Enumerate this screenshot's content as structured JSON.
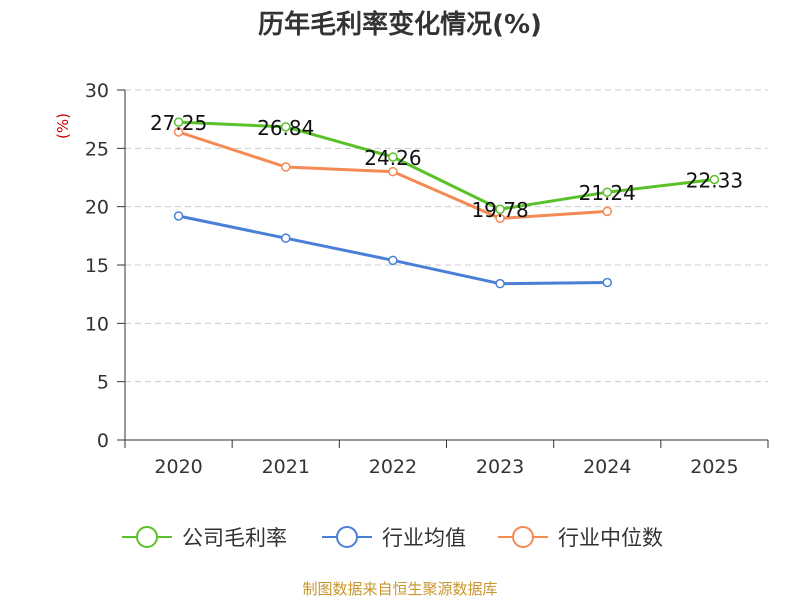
{
  "chart_data": {
    "type": "line",
    "title": "历年毛利率变化情况(%)",
    "ylabel": "(%)",
    "xlabel": "",
    "ylim": [
      0,
      30
    ],
    "yticks": [
      0,
      5,
      10,
      15,
      20,
      25,
      30
    ],
    "categories": [
      "2020",
      "2021",
      "2022",
      "2023",
      "2024",
      "2025"
    ],
    "series": [
      {
        "name": "公司毛利率",
        "color": "#5ac228",
        "values": [
          27.25,
          26.84,
          24.26,
          19.78,
          21.24,
          22.33
        ],
        "labels": [
          "27.25",
          "26.84",
          "24.26",
          "19.78",
          "21.24",
          "22.33"
        ]
      },
      {
        "name": "行业均值",
        "color": "#4a7fd8",
        "values": [
          19.2,
          17.3,
          15.4,
          13.4,
          13.5,
          null
        ]
      },
      {
        "name": "行业中位数",
        "color": "#f58a55",
        "values": [
          26.4,
          23.4,
          23.0,
          19.0,
          19.6,
          null
        ]
      }
    ],
    "grid": true,
    "legend_position": "bottom"
  },
  "source": "制图数据来自恒生聚源数据库"
}
